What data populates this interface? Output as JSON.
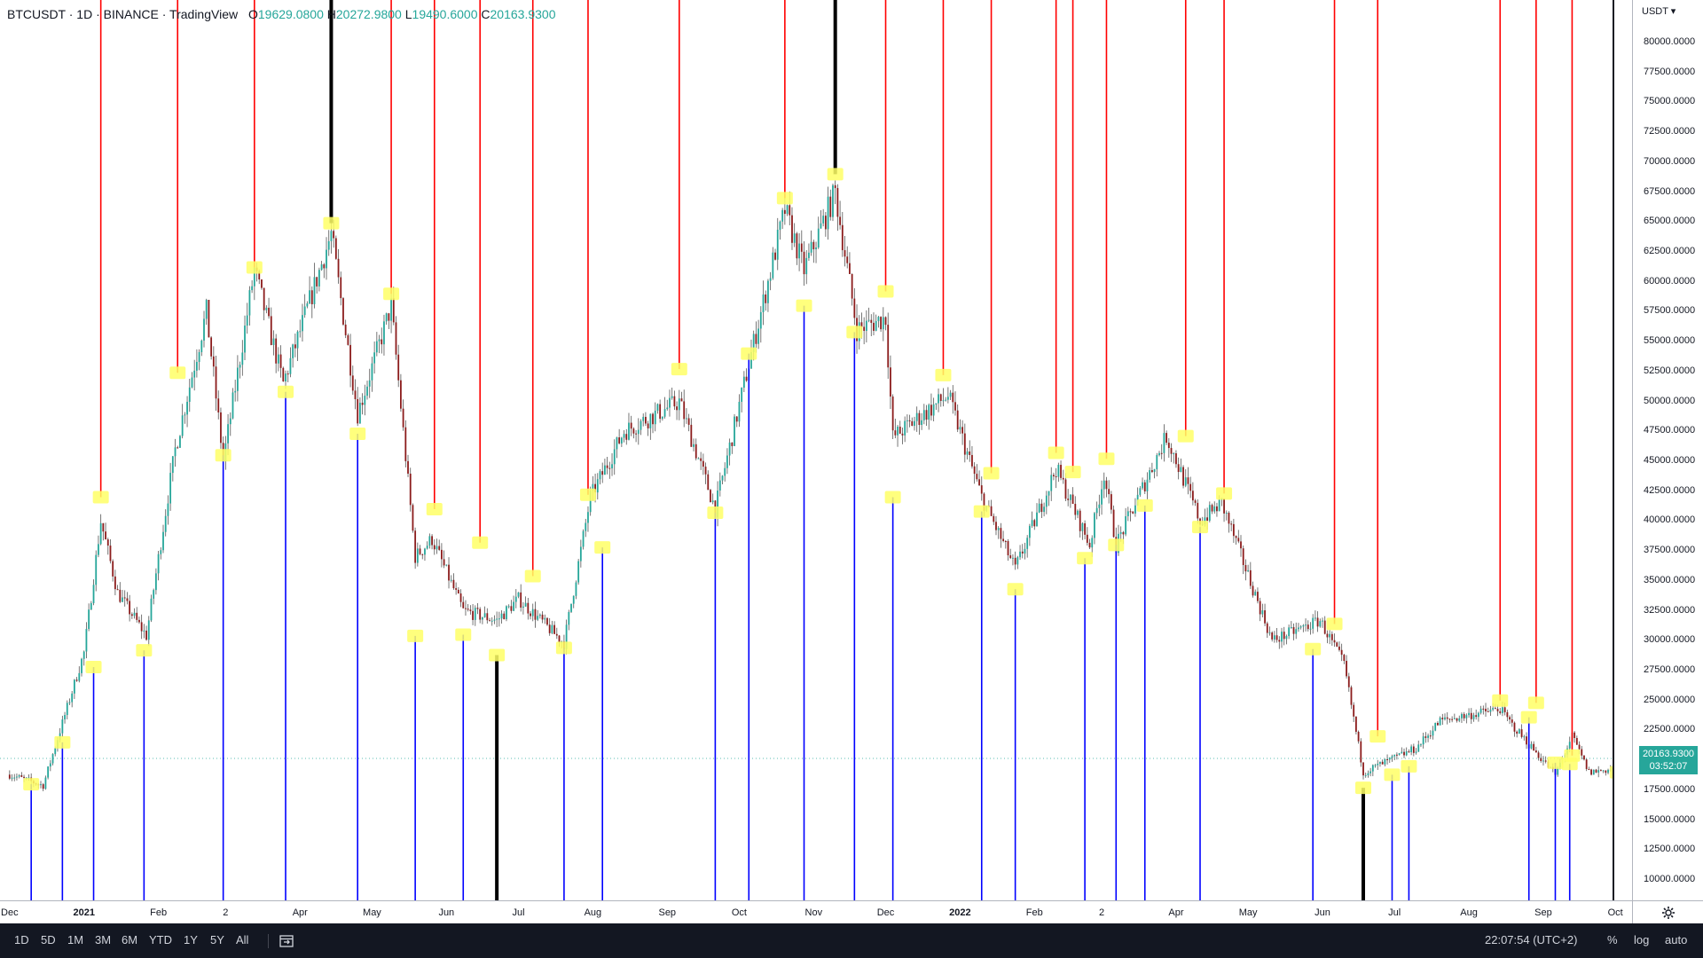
{
  "legend": {
    "symbol": "BTCUSDT · 1D · BINANCE · TradingView",
    "open_prefix": "O",
    "open": "19629.0800",
    "high_prefix": "H",
    "high": "20272.9800",
    "low_prefix": "L",
    "low": "19490.6000",
    "close_prefix": "C",
    "close": "20163.9300"
  },
  "price_axis": {
    "currency": "USDT ▾",
    "current_price": "20163.9300",
    "countdown": "03:52:07",
    "ticks": [
      "80000.0000",
      "77500.0000",
      "75000.0000",
      "72500.0000",
      "70000.0000",
      "67500.0000",
      "65000.0000",
      "62500.0000",
      "60000.0000",
      "57500.0000",
      "55000.0000",
      "52500.0000",
      "50000.0000",
      "47500.0000",
      "45000.0000",
      "42500.0000",
      "40000.0000",
      "37500.0000",
      "35000.0000",
      "32500.0000",
      "30000.0000",
      "27500.0000",
      "25000.0000",
      "22500.0000",
      "20000.0000",
      "17500.0000",
      "15000.0000",
      "12500.0000",
      "10000.0000"
    ]
  },
  "time_axis": {
    "labels": [
      "Dec",
      "2021",
      "Feb",
      "2",
      "Apr",
      "May",
      "Jun",
      "Jul",
      "Aug",
      "Sep",
      "Oct",
      "Nov",
      "Dec",
      "2022",
      "Feb",
      "2",
      "Apr",
      "May",
      "Jun",
      "Jul",
      "Aug",
      "Sep",
      "Oct"
    ]
  },
  "bottom_bar": {
    "ranges": [
      "1D",
      "5D",
      "1M",
      "3M",
      "6M",
      "YTD",
      "1Y",
      "5Y",
      "All"
    ],
    "clock": "22:07:54 (UTC+2)",
    "percent": "%",
    "log": "log",
    "auto": "auto"
  },
  "colors": {
    "up": "#26a69a",
    "down": "#8b1c1c",
    "red_line": "#ff0000",
    "blue_line": "#0000ff",
    "black_line": "#000000",
    "marker": "#ffff66"
  },
  "chart_data": {
    "type": "candlestick",
    "title": "BTCUSDT · 1D · BINANCE",
    "ylabel": "USDT",
    "ylim": [
      9000,
      82000
    ],
    "x": [
      "2020-12-01",
      "2020-12-15",
      "2021-01-01",
      "2021-01-08",
      "2021-01-15",
      "2021-01-27",
      "2021-02-08",
      "2021-02-21",
      "2021-02-28",
      "2021-03-13",
      "2021-03-25",
      "2021-04-14",
      "2021-04-25",
      "2021-05-09",
      "2021-05-19",
      "2021-05-26",
      "2021-06-08",
      "2021-06-22",
      "2021-07-01",
      "2021-07-20",
      "2021-07-31",
      "2021-08-14",
      "2021-09-06",
      "2021-09-21",
      "2021-10-06",
      "2021-10-20",
      "2021-10-28",
      "2021-11-10",
      "2021-11-19",
      "2021-12-01",
      "2021-12-04",
      "2021-12-27",
      "2022-01-10",
      "2022-01-24",
      "2022-02-10",
      "2022-02-24",
      "2022-03-02",
      "2022-03-07",
      "2022-03-28",
      "2022-04-11",
      "2022-04-20",
      "2022-05-11",
      "2022-05-31",
      "2022-06-10",
      "2022-06-18",
      "2022-07-10",
      "2022-07-20",
      "2022-08-14",
      "2022-08-18",
      "2022-09-06",
      "2022-09-13",
      "2022-09-20",
      "2022-10-01",
      "2022-10-05"
    ],
    "close": [
      18800,
      17900,
      29000,
      40000,
      34000,
      30400,
      46000,
      57500,
      45000,
      61000,
      51500,
      64000,
      49000,
      58000,
      37000,
      38500,
      32500,
      31700,
      33500,
      29800,
      42000,
      47500,
      50000,
      41000,
      54000,
      66000,
      61000,
      67500,
      56000,
      57000,
      47000,
      50500,
      42000,
      36000,
      44400,
      38000,
      44000,
      38000,
      47100,
      40000,
      41500,
      30000,
      31700,
      28000,
      19000,
      21000,
      23300,
      24300,
      23200,
      18800,
      22000,
      19000,
      19300,
      20160
    ],
    "series_lines": [
      {
        "name": "",
        "values_x": [
          "2021-01-08",
          "2021-02-21",
          "2021-03-13",
          "2021-04-14",
          "2021-05-09",
          "2021-05-26",
          "2021-06-22",
          "2021-07-20",
          "2021-08-14",
          "2021-09-06",
          "2021-10-20",
          "2021-11-10",
          "2021-12-01",
          "2021-12-27",
          "2022-01-10",
          "2022-02-10",
          "2022-02-17",
          "2022-03-28",
          "2022-04-11",
          "2022-04-20",
          "2022-06-10",
          "2022-06-18",
          "2022-08-14",
          "2022-08-18",
          "2022-09-13"
        ]
      }
    ]
  }
}
